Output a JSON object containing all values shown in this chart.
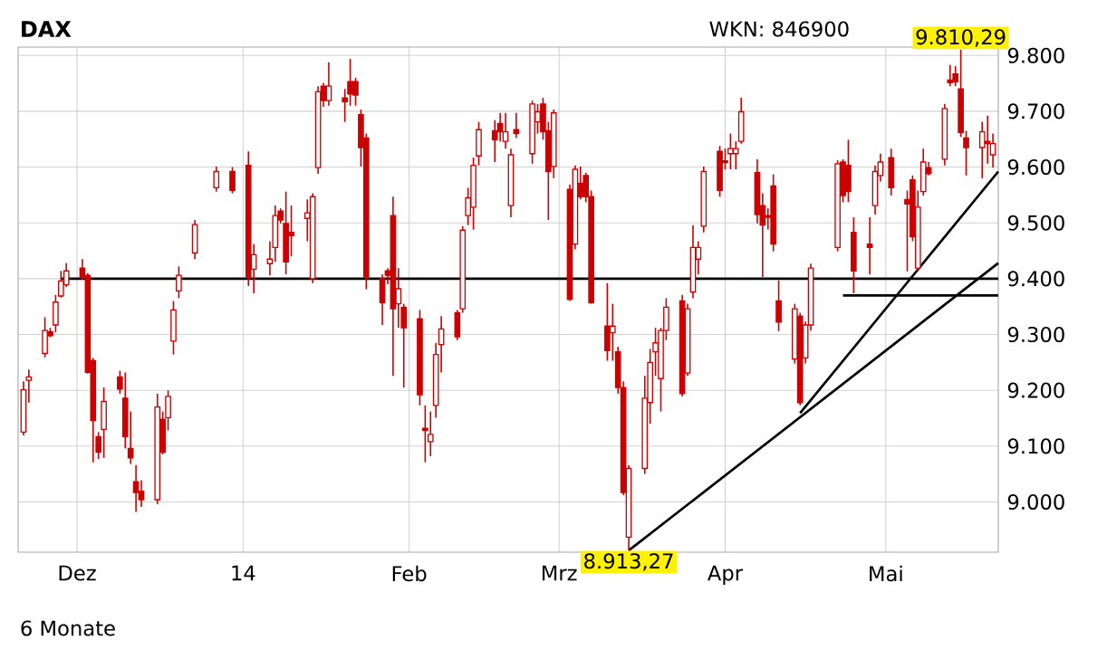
{
  "chart_data": {
    "type": "candlestick",
    "title": "DAX",
    "color": "#cc0000",
    "annotations": [
      "WKN: 846900",
      "6 Monate",
      {
        "text": "8.913,27",
        "x": "2014-03-14",
        "y": 8913.27
      },
      {
        "text": "9.810,29",
        "x": "2014-05-15",
        "y": 9810.29
      }
    ],
    "x": [
      "2013-11-21",
      "2013-11-22",
      "2013-11-25",
      "2013-11-26",
      "2013-11-27",
      "2013-11-28",
      "2013-11-29",
      "2013-12-02",
      "2013-12-03",
      "2013-12-04",
      "2013-12-05",
      "2013-12-06",
      "2013-12-09",
      "2013-12-10",
      "2013-12-11",
      "2013-12-12",
      "2013-12-13",
      "2013-12-16",
      "2013-12-17",
      "2013-12-18",
      "2013-12-19",
      "2013-12-20",
      "2013-12-23",
      "2013-12-27",
      "2013-12-30",
      "2014-01-02",
      "2014-01-03",
      "2014-01-06",
      "2014-01-07",
      "2014-01-08",
      "2014-01-09",
      "2014-01-10",
      "2014-01-13",
      "2014-01-14",
      "2014-01-15",
      "2014-01-16",
      "2014-01-17",
      "2014-01-20",
      "2014-01-21",
      "2014-01-22",
      "2014-01-23",
      "2014-01-24",
      "2014-01-27",
      "2014-01-28",
      "2014-01-29",
      "2014-01-30",
      "2014-01-31",
      "2014-02-03",
      "2014-02-04",
      "2014-02-05",
      "2014-02-06",
      "2014-02-07",
      "2014-02-10",
      "2014-02-11",
      "2014-02-12",
      "2014-02-13",
      "2014-02-14",
      "2014-02-17",
      "2014-02-18",
      "2014-02-19",
      "2014-02-20",
      "2014-02-21",
      "2014-02-24",
      "2014-02-25",
      "2014-02-26",
      "2014-02-27",
      "2014-02-28",
      "2014-03-03",
      "2014-03-04",
      "2014-03-05",
      "2014-03-06",
      "2014-03-07",
      "2014-03-10",
      "2014-03-11",
      "2014-03-12",
      "2014-03-13",
      "2014-03-14",
      "2014-03-17",
      "2014-03-18",
      "2014-03-19",
      "2014-03-20",
      "2014-03-21",
      "2014-03-24",
      "2014-03-25",
      "2014-03-26",
      "2014-03-27",
      "2014-03-28",
      "2014-03-31",
      "2014-04-01",
      "2014-04-02",
      "2014-04-03",
      "2014-04-04",
      "2014-04-07",
      "2014-04-08",
      "2014-04-09",
      "2014-04-10",
      "2014-04-11",
      "2014-04-14",
      "2014-04-15",
      "2014-04-16",
      "2014-04-17",
      "2014-04-22",
      "2014-04-23",
      "2014-04-24",
      "2014-04-25",
      "2014-04-28",
      "2014-04-29",
      "2014-04-30",
      "2014-05-02",
      "2014-05-05",
      "2014-05-06",
      "2014-05-07",
      "2014-05-08",
      "2014-05-09",
      "2014-05-12",
      "2014-05-13",
      "2014-05-14",
      "2014-05-15",
      "2014-05-16",
      "2014-05-19",
      "2014-05-20",
      "2014-05-21"
    ],
    "ohlc": [
      [
        9125,
        9216,
        9119,
        9201
      ],
      [
        9218,
        9237,
        9178,
        9224
      ],
      [
        9266,
        9331,
        9259,
        9307
      ],
      [
        9305,
        9312,
        9295,
        9298
      ],
      [
        9317,
        9371,
        9304,
        9358
      ],
      [
        9369,
        9414,
        9366,
        9396
      ],
      [
        9389,
        9428,
        9385,
        9414
      ],
      [
        9419,
        9435,
        9398,
        9403
      ],
      [
        9406,
        9410,
        9230,
        9232
      ],
      [
        9253,
        9258,
        9071,
        9146
      ],
      [
        9117,
        9125,
        9077,
        9089
      ],
      [
        9130,
        9205,
        9079,
        9180
      ],
      [
        9224,
        9235,
        9194,
        9202
      ],
      [
        9186,
        9232,
        9096,
        9117
      ],
      [
        9096,
        9162,
        9068,
        9079
      ],
      [
        9036,
        9066,
        8982,
        9017
      ],
      [
        9019,
        9039,
        8991,
        9004
      ],
      [
        9004,
        9194,
        8996,
        9170
      ],
      [
        9148,
        9162,
        9085,
        9089
      ],
      [
        9151,
        9200,
        9128,
        9189
      ],
      [
        9288,
        9360,
        9264,
        9344
      ],
      [
        9378,
        9422,
        9365,
        9406
      ],
      [
        9446,
        9505,
        9435,
        9497
      ],
      [
        9563,
        9601,
        9556,
        9592
      ],
      [
        9592,
        9600,
        9553,
        9558
      ],
      [
        9603,
        9628,
        9387,
        9403
      ],
      [
        9417,
        9462,
        9374,
        9443
      ],
      [
        9427,
        9467,
        9406,
        9435
      ],
      [
        9456,
        9531,
        9430,
        9513
      ],
      [
        9521,
        9526,
        9499,
        9505
      ],
      [
        9499,
        9556,
        9408,
        9430
      ],
      [
        9483,
        9531,
        9440,
        9477
      ],
      [
        9508,
        9542,
        9467,
        9518
      ],
      [
        9400,
        9553,
        9392,
        9547
      ],
      [
        9599,
        9745,
        9588,
        9735
      ],
      [
        9745,
        9751,
        9708,
        9719
      ],
      [
        9719,
        9788,
        9710,
        9745
      ],
      [
        9724,
        9740,
        9681,
        9717
      ],
      [
        9753,
        9794,
        9710,
        9731
      ],
      [
        9753,
        9760,
        9710,
        9729
      ],
      [
        9694,
        9703,
        9601,
        9635
      ],
      [
        9652,
        9660,
        9381,
        9403
      ],
      [
        9400,
        9408,
        9317,
        9357
      ],
      [
        9414,
        9419,
        9390,
        9406
      ],
      [
        9513,
        9547,
        9226,
        9346
      ],
      [
        9355,
        9419,
        9312,
        9382
      ],
      [
        9349,
        9355,
        9205,
        9312
      ],
      [
        9328,
        9344,
        9173,
        9192
      ],
      [
        9132,
        9173,
        9071,
        9128
      ],
      [
        9108,
        9162,
        9082,
        9121
      ],
      [
        9173,
        9285,
        9151,
        9264
      ],
      [
        9282,
        9333,
        9232,
        9310
      ],
      [
        9339,
        9344,
        9290,
        9296
      ],
      [
        9346,
        9494,
        9339,
        9487
      ],
      [
        9513,
        9563,
        9496,
        9545
      ],
      [
        9528,
        9617,
        9488,
        9603
      ],
      [
        9620,
        9681,
        9603,
        9667
      ],
      [
        9665,
        9684,
        9609,
        9649
      ],
      [
        9678,
        9697,
        9646,
        9663
      ],
      [
        9646,
        9697,
        9633,
        9663
      ],
      [
        9531,
        9633,
        9510,
        9622
      ],
      [
        9667,
        9697,
        9652,
        9660
      ],
      [
        9624,
        9719,
        9606,
        9713
      ],
      [
        9681,
        9713,
        9660,
        9699
      ],
      [
        9713,
        9724,
        9649,
        9663
      ],
      [
        9665,
        9681,
        9505,
        9592
      ],
      [
        9601,
        9703,
        9580,
        9697
      ],
      [
        9560,
        9569,
        9360,
        9363
      ],
      [
        9462,
        9603,
        9453,
        9596
      ],
      [
        9571,
        9601,
        9542,
        9547
      ],
      [
        9585,
        9590,
        9537,
        9547
      ],
      [
        9547,
        9558,
        9355,
        9357
      ],
      [
        9315,
        9392,
        9253,
        9271
      ],
      [
        9303,
        9355,
        9253,
        9315
      ],
      [
        9269,
        9278,
        9194,
        9205
      ],
      [
        9205,
        9216,
        9012,
        9017
      ],
      [
        8937,
        9066,
        8913.27,
        9060
      ],
      [
        9060,
        9226,
        9050,
        9186
      ],
      [
        9178,
        9274,
        9140,
        9250
      ],
      [
        9269,
        9312,
        9226,
        9285
      ],
      [
        9221,
        9312,
        9162,
        9307
      ],
      [
        9307,
        9365,
        9290,
        9349
      ],
      [
        9360,
        9371,
        9189,
        9194
      ],
      [
        9231,
        9355,
        9226,
        9346
      ],
      [
        9376,
        9496,
        9365,
        9456
      ],
      [
        9435,
        9467,
        9408,
        9456
      ],
      [
        9494,
        9601,
        9483,
        9592
      ],
      [
        9628,
        9638,
        9547,
        9558
      ],
      [
        9611,
        9633,
        9596,
        9608
      ],
      [
        9624,
        9660,
        9596,
        9633
      ],
      [
        9624,
        9646,
        9596,
        9633
      ],
      [
        9646,
        9724,
        9642,
        9699
      ],
      [
        9590,
        9614,
        9499,
        9515
      ],
      [
        9531,
        9553,
        9403,
        9496
      ],
      [
        9513,
        9526,
        9488,
        9510
      ],
      [
        9566,
        9587,
        9449,
        9462
      ],
      [
        9360,
        9397,
        9306,
        9322
      ],
      [
        9256,
        9355,
        9248,
        9346
      ],
      [
        9333,
        9339,
        9173,
        9178
      ],
      [
        9258,
        9323,
        9248,
        9317
      ],
      [
        9317,
        9427,
        9307,
        9419
      ],
      [
        9456,
        9612,
        9449,
        9606
      ],
      [
        9609,
        9614,
        9537,
        9549
      ],
      [
        9603,
        9649,
        9537,
        9556
      ],
      [
        9483,
        9510,
        9374,
        9414
      ],
      [
        9462,
        9510,
        9408,
        9456
      ],
      [
        9531,
        9603,
        9515,
        9592
      ],
      [
        9585,
        9624,
        9574,
        9609
      ],
      [
        9617,
        9633,
        9549,
        9563
      ],
      [
        9542,
        9558,
        9413,
        9534
      ],
      [
        9577,
        9585,
        9467,
        9475
      ],
      [
        9419,
        9558,
        9413,
        9528
      ],
      [
        9556,
        9633,
        9549,
        9609
      ],
      [
        9599,
        9609,
        9585,
        9588
      ],
      [
        9614,
        9713,
        9603,
        9705
      ],
      [
        9756,
        9783,
        9745,
        9751
      ],
      [
        9767,
        9781,
        9745,
        9753
      ],
      [
        9740,
        9810.29,
        9654,
        9662
      ],
      [
        9652,
        9665,
        9585,
        9635
      ],
      [
        9635,
        9681,
        9580,
        9663
      ],
      [
        9646,
        9692,
        9606,
        9642
      ],
      [
        9622,
        9660,
        9599,
        9642
      ]
    ],
    "series": [
      {
        "type": "line",
        "color": "#000000",
        "x": [
          "2013-11-28",
          "2014-05-22"
        ],
        "values": [
          9400,
          9400
        ]
      },
      {
        "type": "line",
        "color": "#000000",
        "x": [
          "2014-04-23",
          "2014-05-22"
        ],
        "values": [
          9370,
          9370
        ]
      },
      {
        "type": "line",
        "color": "#000000",
        "x": [
          "2014-03-14",
          "2014-05-22"
        ],
        "values": [
          8913,
          9428
        ]
      },
      {
        "type": "line",
        "color": "#000000",
        "x": [
          "2014-04-15",
          "2014-05-22"
        ],
        "values": [
          9159,
          9592
        ]
      }
    ],
    "xlim": [
      "2013-11-20",
      "2014-05-22"
    ],
    "xticks": [
      {
        "value": "2013-12-01",
        "label": "Dez"
      },
      {
        "value": "2014-01-01",
        "label": "14"
      },
      {
        "value": "2014-02-01",
        "label": "Feb"
      },
      {
        "value": "2014-03-01",
        "label": "Mrz"
      },
      {
        "value": "2014-04-01",
        "label": "Apr"
      },
      {
        "value": "2014-05-01",
        "label": "Mai"
      }
    ],
    "ylim": [
      8910,
      9815
    ],
    "yticks": [
      {
        "value": 9000,
        "label": "9.000"
      },
      {
        "value": 9100,
        "label": "9.100"
      },
      {
        "value": 9200,
        "label": "9.200"
      },
      {
        "value": 9300,
        "label": "9.300"
      },
      {
        "value": 9400,
        "label": "9.400"
      },
      {
        "value": 9500,
        "label": "9.500"
      },
      {
        "value": 9600,
        "label": "9.600"
      },
      {
        "value": 9700,
        "label": "9.700"
      },
      {
        "value": 9800,
        "label": "9.800"
      }
    ],
    "grid": true
  }
}
